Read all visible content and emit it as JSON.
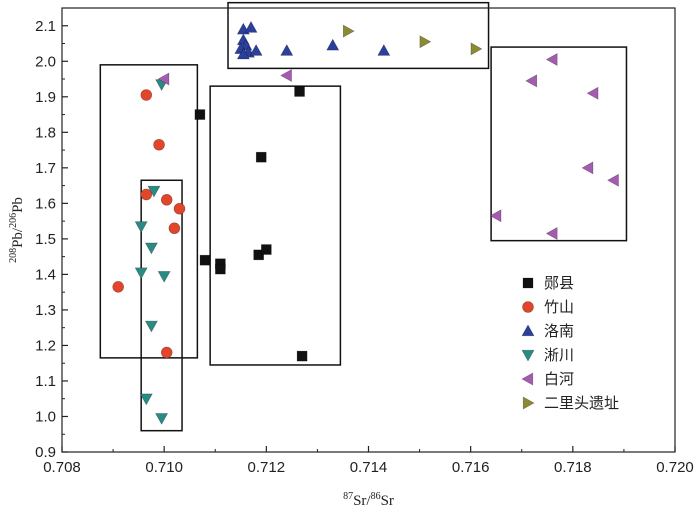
{
  "chart_data": {
    "type": "scatter",
    "xlabel": {
      "sup1": "87",
      "base1": "Sr/",
      "sup2": "86",
      "base2": "Sr"
    },
    "ylabel": {
      "sup1": "208",
      "base1": "Pb/",
      "sup2": "206",
      "base2": "Pb"
    },
    "xlim": [
      0.708,
      0.72
    ],
    "ylim": [
      0.9,
      2.15
    ],
    "xticks": [
      0.708,
      0.71,
      0.712,
      0.714,
      0.716,
      0.718,
      0.72
    ],
    "xtick_labels": [
      "0.708",
      "0.710",
      "0.712",
      "0.714",
      "0.716",
      "0.718",
      "0.720"
    ],
    "yticks": [
      0.9,
      1.0,
      1.1,
      1.2,
      1.3,
      1.4,
      1.5,
      1.6,
      1.7,
      1.8,
      1.9,
      2.0,
      2.1
    ],
    "ytick_labels": [
      "0.9",
      "1.0",
      "1.1",
      "1.2",
      "1.3",
      "1.4",
      "1.5",
      "1.6",
      "1.7",
      "1.8",
      "1.9",
      "2.0",
      "2.1"
    ],
    "grid": false,
    "legend_position": "bottom-right",
    "series": [
      {
        "name": "郧县",
        "marker": "square",
        "color": "#111111",
        "points": [
          [
            0.7107,
            1.85
          ],
          [
            0.71265,
            1.915
          ],
          [
            0.7119,
            1.73
          ],
          [
            0.7108,
            1.44
          ],
          [
            0.7111,
            1.43
          ],
          [
            0.7111,
            1.415
          ],
          [
            0.71185,
            1.455
          ],
          [
            0.712,
            1.47
          ],
          [
            0.7127,
            1.17
          ]
        ]
      },
      {
        "name": "竹山",
        "marker": "circle",
        "color": "#e2452a",
        "points": [
          [
            0.70965,
            1.905
          ],
          [
            0.7099,
            1.765
          ],
          [
            0.70965,
            1.625
          ],
          [
            0.71005,
            1.61
          ],
          [
            0.7103,
            1.585
          ],
          [
            0.7102,
            1.53
          ],
          [
            0.7091,
            1.365
          ],
          [
            0.71005,
            1.18
          ]
        ]
      },
      {
        "name": "洛南",
        "marker": "triangle-up",
        "color": "#2b3f9c",
        "points": [
          [
            0.71155,
            2.09
          ],
          [
            0.7117,
            2.095
          ],
          [
            0.71155,
            2.06
          ],
          [
            0.7116,
            2.045
          ],
          [
            0.7115,
            2.035
          ],
          [
            0.71165,
            2.025
          ],
          [
            0.71155,
            2.02
          ],
          [
            0.7118,
            2.03
          ],
          [
            0.7124,
            2.03
          ],
          [
            0.7133,
            2.045
          ],
          [
            0.7143,
            2.03
          ]
        ]
      },
      {
        "name": "淅川",
        "marker": "triangle-down",
        "color": "#2a8a84",
        "points": [
          [
            0.70995,
            1.935
          ],
          [
            0.7098,
            1.635
          ],
          [
            0.70955,
            1.535
          ],
          [
            0.70975,
            1.475
          ],
          [
            0.70955,
            1.405
          ],
          [
            0.71,
            1.395
          ],
          [
            0.70975,
            1.255
          ],
          [
            0.70965,
            1.05
          ],
          [
            0.70995,
            0.995
          ]
        ]
      },
      {
        "name": "白河",
        "marker": "triangle-left",
        "color": "#a45cb0",
        "points": [
          [
            0.71,
            1.95
          ],
          [
            0.7124,
            1.96
          ],
          [
            0.7176,
            2.005
          ],
          [
            0.7172,
            1.945
          ],
          [
            0.7184,
            1.91
          ],
          [
            0.7183,
            1.7
          ],
          [
            0.7188,
            1.665
          ],
          [
            0.7165,
            1.565
          ],
          [
            0.7176,
            1.515
          ]
        ]
      },
      {
        "name": "二里头遗址",
        "marker": "triangle-right",
        "color": "#8c8a32",
        "points": [
          [
            0.7136,
            2.085
          ],
          [
            0.7151,
            2.055
          ],
          [
            0.7161,
            2.035
          ]
        ]
      }
    ],
    "group_boxes": [
      {
        "x": [
          0.70875,
          0.71065
        ],
        "y": [
          1.165,
          1.99
        ]
      },
      {
        "x": [
          0.70955,
          0.71035
        ],
        "y": [
          0.96,
          1.665
        ]
      },
      {
        "x": [
          0.7109,
          0.71345
        ],
        "y": [
          1.145,
          1.93
        ]
      },
      {
        "x": [
          0.71125,
          0.71635
        ],
        "y": [
          1.98,
          2.165
        ]
      },
      {
        "x": [
          0.7164,
          0.71905
        ],
        "y": [
          1.495,
          2.04
        ]
      }
    ]
  }
}
